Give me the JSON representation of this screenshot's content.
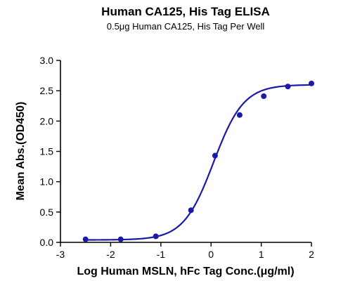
{
  "chart_data": {
    "type": "scatter",
    "title": "Human CA125, His Tag ELISA",
    "subtitle": "0.5μg Human CA125, His Tag Per Well",
    "xlabel": "Log Human MSLN, hFc Tag Conc.(μg/ml)",
    "ylabel": "Mean Abs.(OD450)",
    "xlim": [
      -3,
      2
    ],
    "ylim": [
      0,
      3.0
    ],
    "x_ticks": [
      "-3",
      "-2",
      "-1",
      "0",
      "1",
      "2"
    ],
    "y_ticks": [
      "0.0",
      "0.5",
      "1.0",
      "1.5",
      "2.0",
      "2.5",
      "3.0"
    ],
    "grid": false,
    "series": [
      {
        "x": [
          -2.5,
          -1.8,
          -1.1,
          -0.4,
          0.08,
          0.57,
          1.05,
          1.53,
          2.0
        ],
        "y": [
          0.05,
          0.05,
          0.1,
          0.53,
          1.43,
          2.1,
          2.41,
          2.57,
          2.62
        ],
        "color": "#1a1aa8",
        "fit": {
          "model": "4PL",
          "bottom": 0.04,
          "top": 2.6,
          "log_ec50": 0.05,
          "hill_slope": 1.45
        }
      }
    ]
  }
}
